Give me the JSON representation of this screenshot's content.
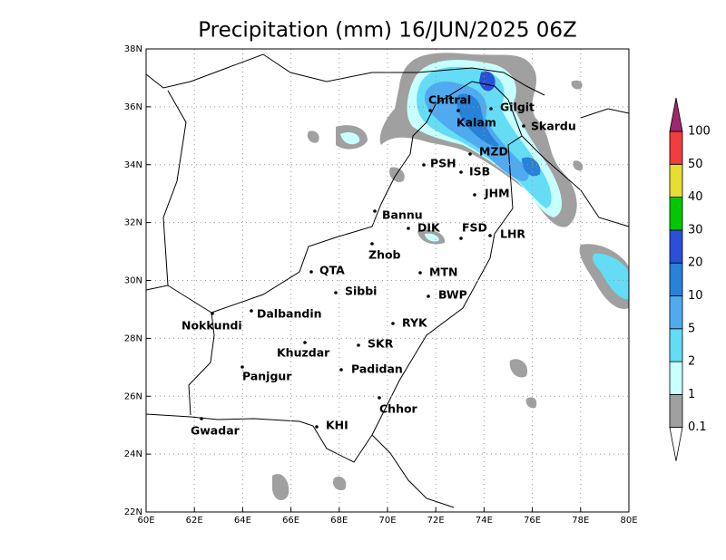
{
  "title": "Precipitation (mm) 16/JUN/2025 06Z",
  "xticks": [
    {
      "value": 60,
      "label": "60E"
    },
    {
      "value": 62,
      "label": "62E"
    },
    {
      "value": 64,
      "label": "64E"
    },
    {
      "value": 66,
      "label": "66E"
    },
    {
      "value": 68,
      "label": "68E"
    },
    {
      "value": 70,
      "label": "70E"
    },
    {
      "value": 72,
      "label": "72E"
    },
    {
      "value": 74,
      "label": "74E"
    },
    {
      "value": 76,
      "label": "76E"
    },
    {
      "value": 78,
      "label": "78E"
    },
    {
      "value": 80,
      "label": "80E"
    }
  ],
  "yticks": [
    {
      "value": 22,
      "label": "22N"
    },
    {
      "value": 24,
      "label": "24N"
    },
    {
      "value": 26,
      "label": "26N"
    },
    {
      "value": 28,
      "label": "28N"
    },
    {
      "value": 30,
      "label": "30N"
    },
    {
      "value": 32,
      "label": "32N"
    },
    {
      "value": 34,
      "label": "34N"
    },
    {
      "value": 36,
      "label": "36N"
    },
    {
      "value": 38,
      "label": "38N"
    }
  ],
  "xlim": [
    60,
    80
  ],
  "ylim": [
    22,
    38
  ],
  "grid": true,
  "cities": [
    "Chitral",
    "Kalam",
    "Gilgit",
    "Skardu",
    "MZD",
    "PSH",
    "ISB",
    "JHM",
    "Bannu",
    "DIK",
    "FSD",
    "LHR",
    "Zhob",
    "QTA",
    "MTN",
    "Sibbi",
    "BWP",
    "Dalbandin",
    "Nokkundi",
    "RYK",
    "Khuzdar",
    "SKR",
    "Panjgur",
    "Padidan",
    "Chhor",
    "KHI",
    "Gwadar"
  ],
  "colorbar": {
    "levels": [
      0.1,
      1,
      2,
      5,
      10,
      20,
      30,
      40,
      50,
      100
    ],
    "colors": [
      "#ffffff",
      "#a0a0a0",
      "#c8ffff",
      "#64dcf5",
      "#50aaf0",
      "#2882d8",
      "#2850d8",
      "#00c800",
      "#e6dc32",
      "#f03c3c",
      "#a0266e"
    ]
  }
}
